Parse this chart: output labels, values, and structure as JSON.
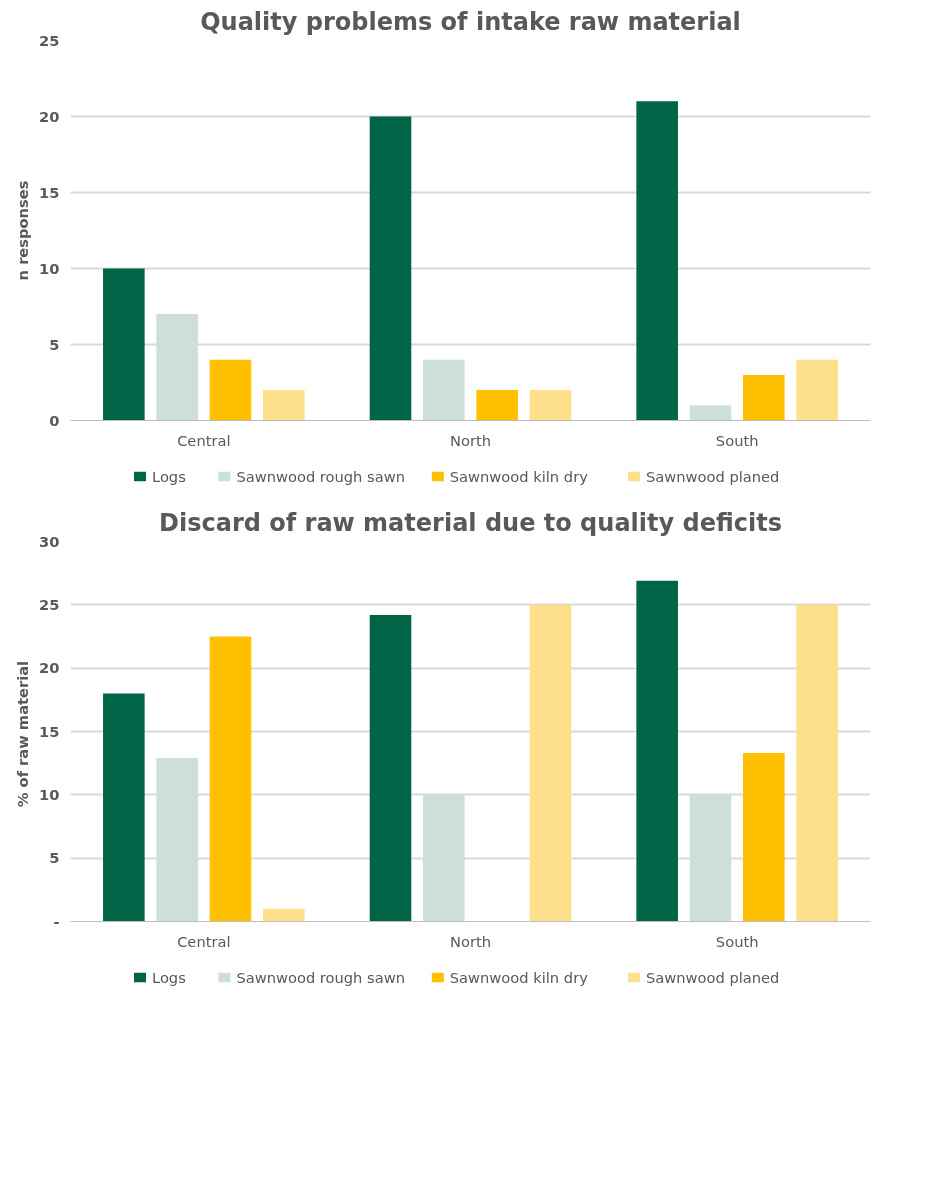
{
  "chart_data": [
    {
      "type": "bar",
      "title": "Quality problems of intake raw material",
      "ylabel": "n responses",
      "categories": [
        "Central",
        "North",
        "South"
      ],
      "series": [
        {
          "name": "Logs",
          "color": "#006546",
          "values": [
            10,
            20,
            21
          ]
        },
        {
          "name": "Sawnwood rough sawn",
          "color": "#cce0d8",
          "values": [
            7,
            4,
            1
          ]
        },
        {
          "name": "Sawnwood kiln dry",
          "color": "#ffc000",
          "values": [
            4,
            2,
            3
          ]
        },
        {
          "name": "Sawnwood planed",
          "color": "#ffe08a",
          "values": [
            2,
            2,
            4
          ]
        }
      ],
      "ylim": [
        0,
        25
      ],
      "yticks": [
        0,
        5,
        10,
        15,
        20,
        25
      ],
      "grid": "y",
      "legend": "bottom"
    },
    {
      "type": "bar",
      "title": "Discard of raw material due to quality deficits",
      "ylabel": "% of  raw material",
      "categories": [
        "Central",
        "North",
        "South"
      ],
      "series": [
        {
          "name": "Logs",
          "color": "#006546",
          "values": [
            18,
            24.2,
            26.9
          ]
        },
        {
          "name": "Sawnwood rough sawn",
          "color": "#cce0d8",
          "values": [
            12.9,
            10,
            10
          ]
        },
        {
          "name": "Sawnwood kiln dry",
          "color": "#ffc000",
          "values": [
            22.5,
            0,
            13.3
          ]
        },
        {
          "name": "Sawnwood planed",
          "color": "#ffe08a",
          "values": [
            1,
            25,
            25
          ]
        }
      ],
      "ylim": [
        0,
        30
      ],
      "yticks": [
        {
          "value": 0,
          "label": "-"
        },
        5,
        10,
        15,
        20,
        25,
        30
      ],
      "grid": "y",
      "legend": "bottom"
    }
  ]
}
